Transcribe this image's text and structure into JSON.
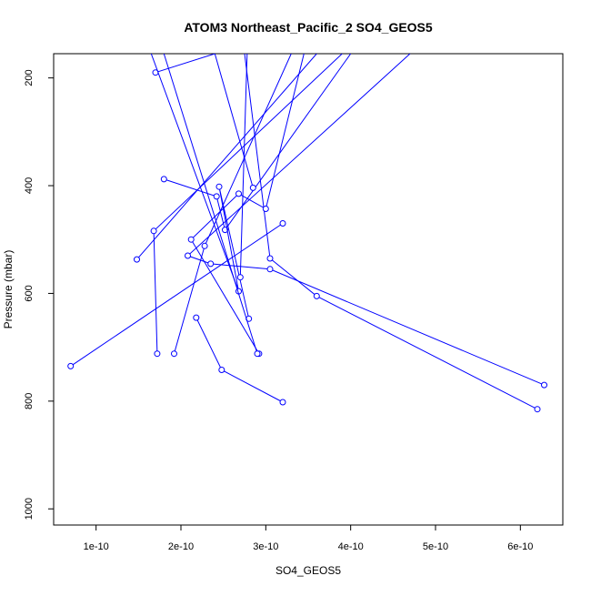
{
  "chart_data": {
    "type": "line",
    "title": "ATOM3 Northeast_Pacific_2 SO4_GEOS5",
    "xlabel": "SO4_GEOS5",
    "ylabel": "Pressure (mbar)",
    "xlim": [
      5e-11,
      6.5e-10
    ],
    "ylim": [
      1030,
      155
    ],
    "y_reversed": true,
    "grid": false,
    "xticks": [
      1e-10,
      2e-10,
      3e-10,
      4e-10,
      5e-10,
      6e-10
    ],
    "xtick_labels": [
      "1e-10",
      "2e-10",
      "3e-10",
      "4e-10",
      "5e-10",
      "6e-10"
    ],
    "yticks": [
      200,
      400,
      600,
      800,
      1000
    ],
    "ytick_labels": [
      "200",
      "400",
      "600",
      "800",
      "1000"
    ],
    "colors": {
      "series": "#0000ff"
    },
    "series": [
      {
        "style": "line+open-circles",
        "points": [
          {
            "x": 3.2e-10,
            "y": 802
          },
          {
            "x": 2.48e-10,
            "y": 742
          },
          {
            "x": 2.18e-10,
            "y": 645
          }
        ]
      },
      {
        "style": "line+open-circles",
        "points": [
          {
            "x": 7e-11,
            "y": 735
          },
          {
            "x": 3.2e-10,
            "y": 470
          }
        ]
      },
      {
        "style": "line+open-circles",
        "points": [
          {
            "x": 6.2e-10,
            "y": 815
          },
          {
            "x": 3.6e-10,
            "y": 605
          },
          {
            "x": 3.05e-10,
            "y": 535
          },
          {
            "x": 2.75e-10,
            "y": 155
          }
        ]
      },
      {
        "style": "line+open-circles",
        "points": [
          {
            "x": 6.28e-10,
            "y": 770
          },
          {
            "x": 3.05e-10,
            "y": 555
          },
          {
            "x": 2.35e-10,
            "y": 545
          },
          {
            "x": 2.08e-10,
            "y": 530
          },
          {
            "x": 4.7e-10,
            "y": 155
          }
        ]
      },
      {
        "style": "line+open-circles",
        "points": [
          {
            "x": 1.8e-10,
            "y": 388
          },
          {
            "x": 2.42e-10,
            "y": 420
          },
          {
            "x": 2.52e-10,
            "y": 482
          },
          {
            "x": 4e-10,
            "y": 155
          }
        ]
      },
      {
        "style": "line+open-circles",
        "points": [
          {
            "x": 1.7e-10,
            "y": 190
          },
          {
            "x": 2.4e-10,
            "y": 155
          }
        ]
      },
      {
        "style": "line+open-circles",
        "points": [
          {
            "x": 1.48e-10,
            "y": 537
          },
          {
            "x": 3.6e-10,
            "y": 155
          }
        ]
      },
      {
        "style": "line+open-circles",
        "points": [
          {
            "x": 1.72e-10,
            "y": 712
          },
          {
            "x": 1.68e-10,
            "y": 484
          },
          {
            "x": 3.9e-10,
            "y": 155
          }
        ]
      },
      {
        "style": "line+open-circles",
        "points": [
          {
            "x": 1.92e-10,
            "y": 712
          },
          {
            "x": 2.28e-10,
            "y": 512
          },
          {
            "x": 3.3e-10,
            "y": 155
          }
        ]
      },
      {
        "style": "line+open-circles",
        "points": [
          {
            "x": 2.92e-10,
            "y": 712
          },
          {
            "x": 2.12e-10,
            "y": 500
          },
          {
            "x": 2.68e-10,
            "y": 415
          },
          {
            "x": 3e-10,
            "y": 443
          },
          {
            "x": 3.45e-10,
            "y": 155
          }
        ]
      },
      {
        "style": "line+open-circles",
        "points": [
          {
            "x": 2.8e-10,
            "y": 647
          },
          {
            "x": 2.45e-10,
            "y": 402
          },
          {
            "x": 2.68e-10,
            "y": 596
          },
          {
            "x": 1.65e-10,
            "y": 155
          }
        ]
      },
      {
        "style": "line+open-circles",
        "points": [
          {
            "x": 2.85e-10,
            "y": 404
          },
          {
            "x": 2.4e-10,
            "y": 155
          }
        ]
      },
      {
        "style": "line+open-circles",
        "points": [
          {
            "x": 2.78e-10,
            "y": 155
          },
          {
            "x": 2.7e-10,
            "y": 570
          }
        ]
      },
      {
        "style": "line+open-circles",
        "points": [
          {
            "x": 1.8e-10,
            "y": 155
          },
          {
            "x": 2.9e-10,
            "y": 712
          }
        ]
      }
    ]
  }
}
